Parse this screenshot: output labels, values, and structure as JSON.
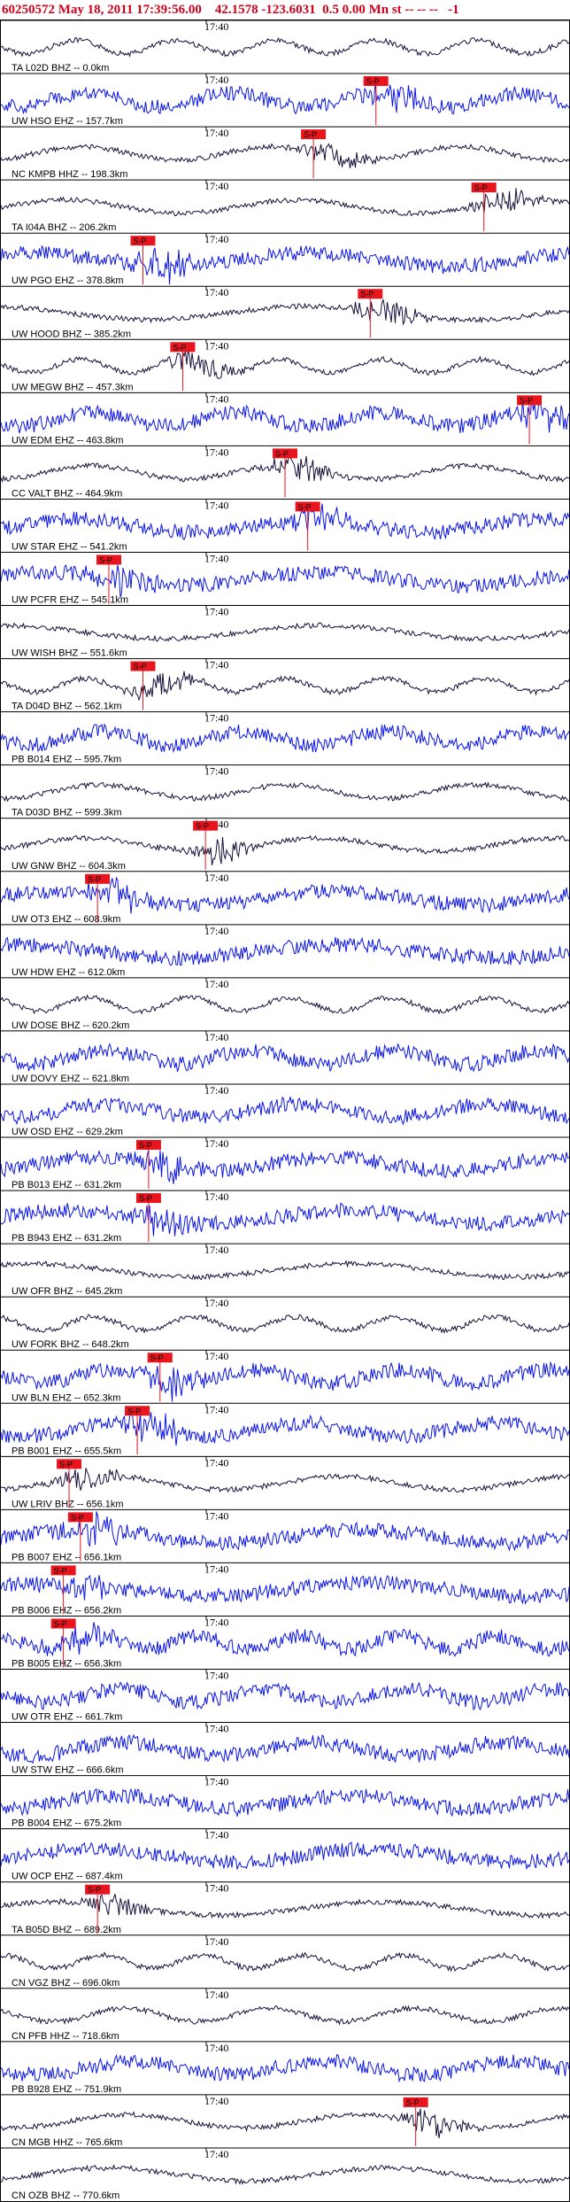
{
  "header": {
    "title": "60250572 May 18, 2011 17:39:56.00    42.1578 -123.6031  0.5 0.00 Mn st -- -- --   -1"
  },
  "colors": {
    "title": "#d0021b",
    "trace_black": "#14103a",
    "trace_blue": "#0a14e6",
    "pick_box": "#e8141e",
    "pick_line": "#e8141e",
    "gap_marker": "#8fe08f"
  },
  "chart_data": {
    "type": "line",
    "title": "60250572 May 18, 2011 17:39:56.00    42.1578 -123.6031  0.5 0.00 Mn st -- -- --   -1",
    "time_tick_label": "17:40",
    "pick_label": "S-P",
    "series": [
      {
        "label": "TA L02D BHZ -- 0.0km",
        "color": "black",
        "pick": null
      },
      {
        "label": "UW HSO EHZ -- 157.7km",
        "color": "blue",
        "pick": 0.66
      },
      {
        "label": "NC KMPB HHZ -- 198.3km",
        "color": "black",
        "pick": 0.55
      },
      {
        "label": "TA I04A BHZ -- 206.2km",
        "color": "black",
        "pick": 0.85
      },
      {
        "label": "UW PGO EHZ -- 378.8km",
        "color": "blue",
        "pick": 0.25
      },
      {
        "label": "UW HOOD BHZ -- 385.2km",
        "color": "black",
        "pick": 0.65
      },
      {
        "label": "UW MEGW BHZ -- 457.3km",
        "color": "black",
        "pick": 0.32
      },
      {
        "label": "UW EDM EHZ -- 463.8km",
        "color": "blue",
        "pick": 0.93
      },
      {
        "label": "CC VALT BHZ -- 464.9km",
        "color": "black",
        "pick": 0.5
      },
      {
        "label": "UW STAR EHZ -- 541.2km",
        "color": "blue",
        "pick": 0.54
      },
      {
        "label": "UW PCFR EHZ -- 545.1km",
        "color": "blue",
        "pick": 0.19
      },
      {
        "label": "UW WISH BHZ -- 551.6km",
        "color": "black",
        "pick": null
      },
      {
        "label": "TA D04D BHZ -- 562.1km",
        "color": "black",
        "pick": 0.25
      },
      {
        "label": "PB B014 EHZ -- 595.7km",
        "color": "blue",
        "pick": null
      },
      {
        "label": "TA D03D BHZ -- 599.3km",
        "color": "black",
        "pick": null
      },
      {
        "label": "UW GNW BHZ -- 604.3km",
        "color": "black",
        "pick": 0.36
      },
      {
        "label": "UW OT3 EHZ -- 608.9km",
        "color": "blue",
        "pick": 0.17
      },
      {
        "label": "UW HDW EHZ -- 612.0km",
        "color": "blue",
        "pick": null
      },
      {
        "label": "UW DOSE BHZ -- 620.2km",
        "color": "black",
        "pick": null
      },
      {
        "label": "UW DOVY EHZ -- 621.8km",
        "color": "blue",
        "pick": null
      },
      {
        "label": "UW OSD EHZ -- 629.2km",
        "color": "blue",
        "pick": null
      },
      {
        "label": "PB B013 EHZ -- 631.2km",
        "color": "blue",
        "pick": 0.26
      },
      {
        "label": "PB B943 EHZ -- 631.2km",
        "color": "blue",
        "pick": 0.26
      },
      {
        "label": "UW OFR BHZ -- 645.2km",
        "color": "black",
        "pick": null
      },
      {
        "label": "UW FORK BHZ -- 648.2km",
        "color": "black",
        "pick": null
      },
      {
        "label": "UW BLN EHZ -- 652.3km",
        "color": "blue",
        "pick": 0.28
      },
      {
        "label": "PB B001 EHZ -- 655.5km",
        "color": "blue",
        "pick": 0.24
      },
      {
        "label": "UW LRIV BHZ -- 656.1km",
        "color": "black",
        "pick": 0.12
      },
      {
        "label": "PB B007 EHZ -- 656.1km",
        "color": "blue",
        "pick": 0.14
      },
      {
        "label": "PB B006 EHZ -- 656.2km",
        "color": "blue",
        "pick": 0.11
      },
      {
        "label": "PB B005 EHZ -- 656.3km",
        "color": "blue",
        "pick": 0.11
      },
      {
        "label": "UW OTR EHZ -- 661.7km",
        "color": "blue",
        "pick": null
      },
      {
        "label": "UW STW EHZ -- 666.6km",
        "color": "blue",
        "pick": null
      },
      {
        "label": "PB B004 EHZ -- 675.2km",
        "color": "blue",
        "pick": null
      },
      {
        "label": "UW OCP EHZ -- 687.4km",
        "color": "blue",
        "pick": null
      },
      {
        "label": "TA B05D BHZ -- 689.2km",
        "color": "black",
        "pick": 0.17
      },
      {
        "label": "CN VGZ BHZ -- 696.0km",
        "color": "black",
        "pick": null
      },
      {
        "label": "CN PFB HHZ -- 718.6km",
        "color": "black",
        "pick": null
      },
      {
        "label": "PB B928 EHZ -- 751.9km",
        "color": "blue",
        "pick": null
      },
      {
        "label": "CN MGB HHZ -- 765.6km",
        "color": "black",
        "pick": 0.73
      },
      {
        "label": "CN OZB BHZ -- 770.6km",
        "color": "black",
        "pick": null
      }
    ]
  }
}
